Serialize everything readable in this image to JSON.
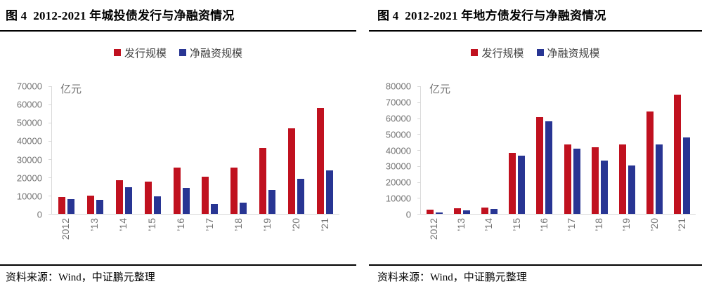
{
  "page": {
    "background": "#ffffff"
  },
  "colors": {
    "issuance_red": "#c0111f",
    "net_financing_blue": "#283593",
    "axis_line": "#d9d9d9",
    "axis_text": "#737373",
    "legend_text": "#404040",
    "title_text": "#000000",
    "rule": "#000000"
  },
  "chart_data": [
    {
      "type": "bar",
      "title": "图 4  2012-2021 年城投债发行与净融资情况",
      "unit_label": "亿元",
      "categories": [
        "2012",
        "’13",
        "’14",
        "’15",
        "’16",
        "’17",
        "’18",
        "’19",
        "’20",
        "’21"
      ],
      "series": [
        {
          "name": "发行规模",
          "color": "#c0111f",
          "values": [
            9300,
            9900,
            18300,
            17700,
            25500,
            20300,
            25300,
            36300,
            47000,
            58000
          ]
        },
        {
          "name": "净融资规模",
          "color": "#283593",
          "values": [
            8000,
            7600,
            14500,
            9700,
            14200,
            5200,
            6200,
            13200,
            19400,
            23700
          ]
        }
      ],
      "ylim": [
        0,
        70000
      ],
      "ytick_interval": 10000,
      "yticks": [
        0,
        10000,
        20000,
        30000,
        40000,
        50000,
        60000,
        70000
      ],
      "grid": false,
      "legend_position": "top",
      "xlabel": "",
      "ylabel": "亿元",
      "source": "资料来源：Wind，中证鹏元整理"
    },
    {
      "type": "bar",
      "title": "图 4  2012-2021 年地方债发行与净融资情况",
      "unit_label": "亿元",
      "categories": [
        "2012",
        "’13",
        "’14",
        "’15",
        "’16",
        "’17",
        "’18",
        "’19",
        "’20",
        "’21"
      ],
      "series": [
        {
          "name": "发行规模",
          "color": "#c0111f",
          "values": [
            2500,
            3500,
            4000,
            38300,
            60500,
            43600,
            41700,
            43600,
            64400,
            74900
          ]
        },
        {
          "name": "净融资规模",
          "color": "#283593",
          "values": [
            800,
            2300,
            3000,
            36600,
            58000,
            40800,
            33300,
            30500,
            43600,
            48000
          ]
        }
      ],
      "ylim": [
        0,
        80000
      ],
      "ytick_interval": 10000,
      "yticks": [
        0,
        10000,
        20000,
        30000,
        40000,
        50000,
        60000,
        70000,
        80000
      ],
      "grid": false,
      "legend_position": "top",
      "xlabel": "",
      "ylabel": "亿元",
      "source": "资料来源：Wind，中证鹏元整理"
    }
  ]
}
